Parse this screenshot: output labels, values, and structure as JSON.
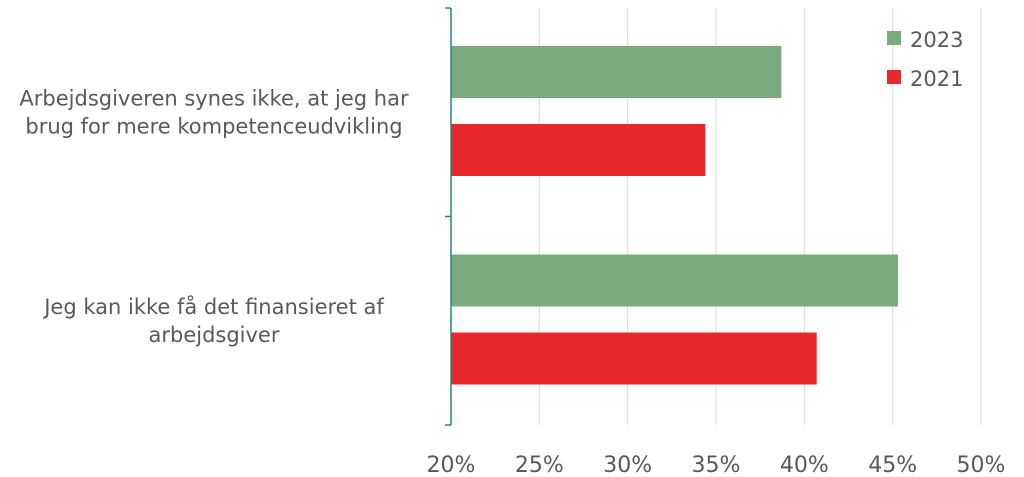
{
  "chart_data": {
    "type": "bar",
    "orientation": "horizontal",
    "categories": [
      [
        "Arbejdsgiveren synes ikke, at jeg har",
        "brug for mere kompetenceudvikling"
      ],
      [
        "Jeg kan ikke få det finansieret af",
        "arbejdsgiver"
      ]
    ],
    "series": [
      {
        "name": "2023",
        "color": "#7aab7e",
        "values": [
          38.7,
          45.3
        ]
      },
      {
        "name": "2021",
        "color": "#e8282d",
        "values": [
          34.4,
          40.7
        ]
      }
    ],
    "xlim": [
      20,
      50
    ],
    "xticks": [
      20,
      25,
      30,
      35,
      40,
      45,
      50
    ],
    "tick_suffix": "%",
    "grid": true,
    "legend_position": "top-right"
  }
}
